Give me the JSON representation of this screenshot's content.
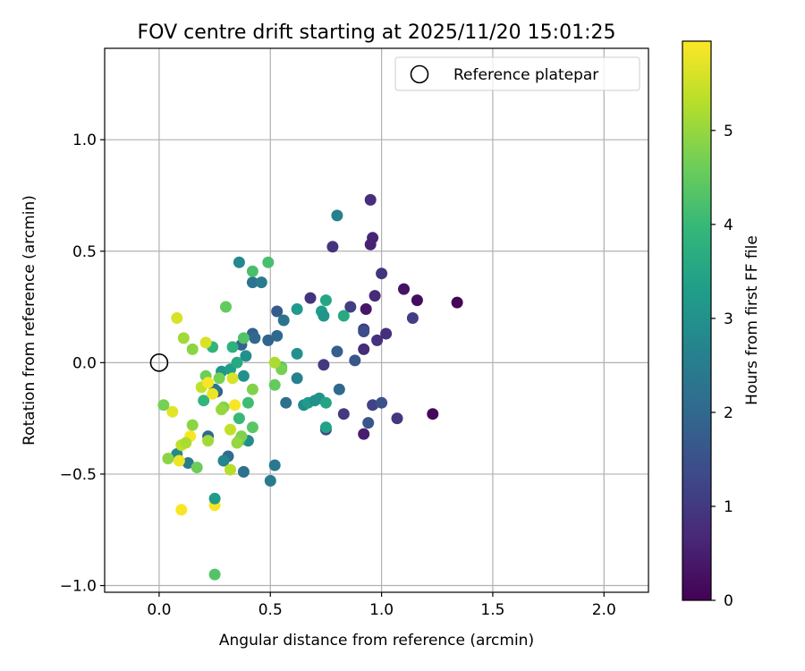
{
  "chart_data": {
    "type": "scatter",
    "title": "FOV centre drift starting at 2025/11/20 15:01:25",
    "xlabel": "Angular distance from reference (arcmin)",
    "ylabel": "Rotation from reference (arcmin)",
    "xlim": [
      -0.245,
      2.2
    ],
    "ylim": [
      -1.03,
      1.41
    ],
    "xticks": [
      0.0,
      0.5,
      1.0,
      1.5,
      2.0
    ],
    "xtick_labels": [
      "0.0",
      "0.5",
      "1.0",
      "1.5",
      "2.0"
    ],
    "yticks": [
      -1.0,
      -0.5,
      0.0,
      0.5,
      1.0
    ],
    "ytick_labels": [
      "−1.0",
      "−0.5",
      "0.0",
      "0.5",
      "1.0"
    ],
    "grid": true,
    "legend": {
      "position": "top-right",
      "label": "Reference platepar"
    },
    "reference_point": {
      "x": 0.0,
      "y": 0.0
    },
    "colorbar": {
      "label": "Hours from first FF file",
      "min": 0,
      "max": 5.95,
      "ticks": [
        0,
        1,
        2,
        3,
        4,
        5
      ],
      "tick_labels": [
        "0",
        "1",
        "2",
        "3",
        "4",
        "5"
      ],
      "colormap": "viridis",
      "colors": [
        "#440154",
        "#482878",
        "#3e4989",
        "#31688e",
        "#26828e",
        "#1f9e89",
        "#35b779",
        "#6ece58",
        "#b5de2b",
        "#fde725"
      ]
    },
    "points": [
      {
        "x": 1.34,
        "y": 0.27,
        "h": 0.05
      },
      {
        "x": 1.23,
        "y": -0.23,
        "h": 0.1
      },
      {
        "x": 1.16,
        "y": 0.28,
        "h": 0.2
      },
      {
        "x": 1.1,
        "y": 0.33,
        "h": 0.3
      },
      {
        "x": 0.93,
        "y": 0.24,
        "h": 0.35
      },
      {
        "x": 0.92,
        "y": -0.32,
        "h": 0.5
      },
      {
        "x": 0.96,
        "y": 0.56,
        "h": 0.6
      },
      {
        "x": 0.95,
        "y": 0.53,
        "h": 0.55
      },
      {
        "x": 0.95,
        "y": 0.73,
        "h": 0.8
      },
      {
        "x": 0.97,
        "y": 0.3,
        "h": 0.7
      },
      {
        "x": 1.0,
        "y": 0.4,
        "h": 0.9
      },
      {
        "x": 1.02,
        "y": 0.13,
        "h": 0.8
      },
      {
        "x": 1.07,
        "y": -0.25,
        "h": 0.95
      },
      {
        "x": 1.14,
        "y": 0.2,
        "h": 1.1
      },
      {
        "x": 0.98,
        "y": 0.1,
        "h": 0.85
      },
      {
        "x": 0.92,
        "y": 0.06,
        "h": 0.75
      },
      {
        "x": 0.92,
        "y": 0.15,
        "h": 1.0
      },
      {
        "x": 0.78,
        "y": 0.52,
        "h": 0.9
      },
      {
        "x": 0.68,
        "y": 0.29,
        "h": 0.9
      },
      {
        "x": 0.74,
        "y": -0.01,
        "h": 1.0
      },
      {
        "x": 0.83,
        "y": -0.23,
        "h": 1.0
      },
      {
        "x": 0.75,
        "y": -0.3,
        "h": 1.2
      },
      {
        "x": 0.86,
        "y": 0.25,
        "h": 1.1
      },
      {
        "x": 0.96,
        "y": -0.19,
        "h": 1.2
      },
      {
        "x": 1.0,
        "y": -0.18,
        "h": 1.5
      },
      {
        "x": 0.94,
        "y": -0.27,
        "h": 1.6
      },
      {
        "x": 0.92,
        "y": 0.14,
        "h": 1.4
      },
      {
        "x": 0.88,
        "y": 0.01,
        "h": 1.6
      },
      {
        "x": 0.8,
        "y": 0.05,
        "h": 1.8
      },
      {
        "x": 0.81,
        "y": -0.12,
        "h": 2.0
      },
      {
        "x": 0.8,
        "y": 0.66,
        "h": 2.6
      },
      {
        "x": 0.53,
        "y": 0.23,
        "h": 1.7
      },
      {
        "x": 0.56,
        "y": 0.19,
        "h": 2.3
      },
      {
        "x": 0.57,
        "y": -0.18,
        "h": 2.2
      },
      {
        "x": 0.49,
        "y": 0.1,
        "h": 1.9
      },
      {
        "x": 0.53,
        "y": 0.12,
        "h": 2.0
      },
      {
        "x": 0.42,
        "y": 0.36,
        "h": 2.3
      },
      {
        "x": 0.42,
        "y": 0.13,
        "h": 1.8
      },
      {
        "x": 0.43,
        "y": 0.11,
        "h": 2.0
      },
      {
        "x": 0.46,
        "y": 0.36,
        "h": 2.5
      },
      {
        "x": 0.36,
        "y": 0.45,
        "h": 2.8
      },
      {
        "x": 0.37,
        "y": 0.08,
        "h": 1.9
      },
      {
        "x": 0.38,
        "y": -0.49,
        "h": 2.2
      },
      {
        "x": 0.5,
        "y": -0.53,
        "h": 2.5
      },
      {
        "x": 0.52,
        "y": -0.46,
        "h": 2.4
      },
      {
        "x": 0.62,
        "y": -0.07,
        "h": 2.6
      },
      {
        "x": 0.62,
        "y": 0.04,
        "h": 3.0
      },
      {
        "x": 0.62,
        "y": 0.24,
        "h": 3.2
      },
      {
        "x": 0.65,
        "y": -0.19,
        "h": 2.9
      },
      {
        "x": 0.67,
        "y": -0.18,
        "h": 3.2
      },
      {
        "x": 0.7,
        "y": -0.17,
        "h": 3.0
      },
      {
        "x": 0.72,
        "y": -0.16,
        "h": 3.0
      },
      {
        "x": 0.73,
        "y": 0.23,
        "h": 3.3
      },
      {
        "x": 0.74,
        "y": 0.21,
        "h": 3.1
      },
      {
        "x": 0.75,
        "y": 0.28,
        "h": 3.5
      },
      {
        "x": 0.75,
        "y": -0.18,
        "h": 3.5
      },
      {
        "x": 0.75,
        "y": -0.29,
        "h": 3.4
      },
      {
        "x": 0.83,
        "y": 0.21,
        "h": 3.6
      },
      {
        "x": 0.39,
        "y": 0.03,
        "h": 3.0
      },
      {
        "x": 0.4,
        "y": -0.35,
        "h": 2.9
      },
      {
        "x": 0.31,
        "y": -0.42,
        "h": 2.1
      },
      {
        "x": 0.26,
        "y": -0.13,
        "h": 1.8
      },
      {
        "x": 0.25,
        "y": -0.12,
        "h": 2.4
      },
      {
        "x": 0.22,
        "y": -0.33,
        "h": 2.0
      },
      {
        "x": 0.13,
        "y": -0.45,
        "h": 2.5
      },
      {
        "x": 0.08,
        "y": -0.41,
        "h": 2.8
      },
      {
        "x": 0.29,
        "y": -0.44,
        "h": 2.7
      },
      {
        "x": 0.28,
        "y": -0.04,
        "h": 3.1
      },
      {
        "x": 0.32,
        "y": -0.03,
        "h": 3.3
      },
      {
        "x": 0.35,
        "y": 0.0,
        "h": 3.6
      },
      {
        "x": 0.33,
        "y": 0.07,
        "h": 3.8
      },
      {
        "x": 0.38,
        "y": -0.06,
        "h": 3.0
      },
      {
        "x": 0.38,
        "y": 0.11,
        "h": 4.3
      },
      {
        "x": 0.24,
        "y": 0.07,
        "h": 3.9
      },
      {
        "x": 0.2,
        "y": -0.17,
        "h": 3.9
      },
      {
        "x": 0.4,
        "y": -0.18,
        "h": 4.1
      },
      {
        "x": 0.36,
        "y": -0.25,
        "h": 4.0
      },
      {
        "x": 0.36,
        "y": -0.35,
        "h": 4.2
      },
      {
        "x": 0.42,
        "y": -0.29,
        "h": 4.4
      },
      {
        "x": 0.42,
        "y": -0.12,
        "h": 4.8
      },
      {
        "x": 0.37,
        "y": -0.33,
        "h": 4.8
      },
      {
        "x": 0.35,
        "y": -0.36,
        "h": 5.0
      },
      {
        "x": 0.29,
        "y": -0.2,
        "h": 4.8
      },
      {
        "x": 0.28,
        "y": -0.21,
        "h": 5.0
      },
      {
        "x": 0.42,
        "y": 0.41,
        "h": 4.2
      },
      {
        "x": 0.49,
        "y": 0.45,
        "h": 4.2
      },
      {
        "x": 0.3,
        "y": 0.25,
        "h": 4.5
      },
      {
        "x": 0.52,
        "y": -0.1,
        "h": 4.5
      },
      {
        "x": 0.55,
        "y": -0.02,
        "h": 4.4
      },
      {
        "x": 0.55,
        "y": -0.03,
        "h": 4.7
      },
      {
        "x": 0.52,
        "y": 0.0,
        "h": 5.2
      },
      {
        "x": 0.21,
        "y": -0.06,
        "h": 4.6
      },
      {
        "x": 0.27,
        "y": -0.07,
        "h": 4.7
      },
      {
        "x": 0.19,
        "y": -0.11,
        "h": 5.4
      },
      {
        "x": 0.22,
        "y": -0.09,
        "h": 5.9
      },
      {
        "x": 0.24,
        "y": -0.14,
        "h": 5.8
      },
      {
        "x": 0.33,
        "y": -0.07,
        "h": 5.6
      },
      {
        "x": 0.34,
        "y": -0.19,
        "h": 5.9
      },
      {
        "x": 0.32,
        "y": -0.3,
        "h": 5.4
      },
      {
        "x": 0.22,
        "y": -0.35,
        "h": 5.1
      },
      {
        "x": 0.14,
        "y": -0.33,
        "h": 5.9
      },
      {
        "x": 0.1,
        "y": -0.37,
        "h": 5.4
      },
      {
        "x": 0.12,
        "y": -0.36,
        "h": 5.2
      },
      {
        "x": 0.15,
        "y": -0.28,
        "h": 4.9
      },
      {
        "x": 0.17,
        "y": -0.47,
        "h": 4.6
      },
      {
        "x": 0.09,
        "y": -0.44,
        "h": 5.8
      },
      {
        "x": 0.04,
        "y": -0.43,
        "h": 4.9
      },
      {
        "x": 0.32,
        "y": -0.48,
        "h": 5.3
      },
      {
        "x": 0.06,
        "y": -0.22,
        "h": 5.7
      },
      {
        "x": 0.02,
        "y": -0.19,
        "h": 4.7
      },
      {
        "x": 0.15,
        "y": 0.06,
        "h": 4.9
      },
      {
        "x": 0.11,
        "y": 0.11,
        "h": 5.1
      },
      {
        "x": 0.21,
        "y": 0.09,
        "h": 5.6
      },
      {
        "x": 0.08,
        "y": 0.2,
        "h": 5.6
      },
      {
        "x": 0.1,
        "y": -0.66,
        "h": 5.9
      },
      {
        "x": 0.25,
        "y": -0.64,
        "h": 5.9
      },
      {
        "x": 0.25,
        "y": -0.61,
        "h": 3.2
      },
      {
        "x": 0.25,
        "y": -0.95,
        "h": 4.3
      }
    ]
  }
}
